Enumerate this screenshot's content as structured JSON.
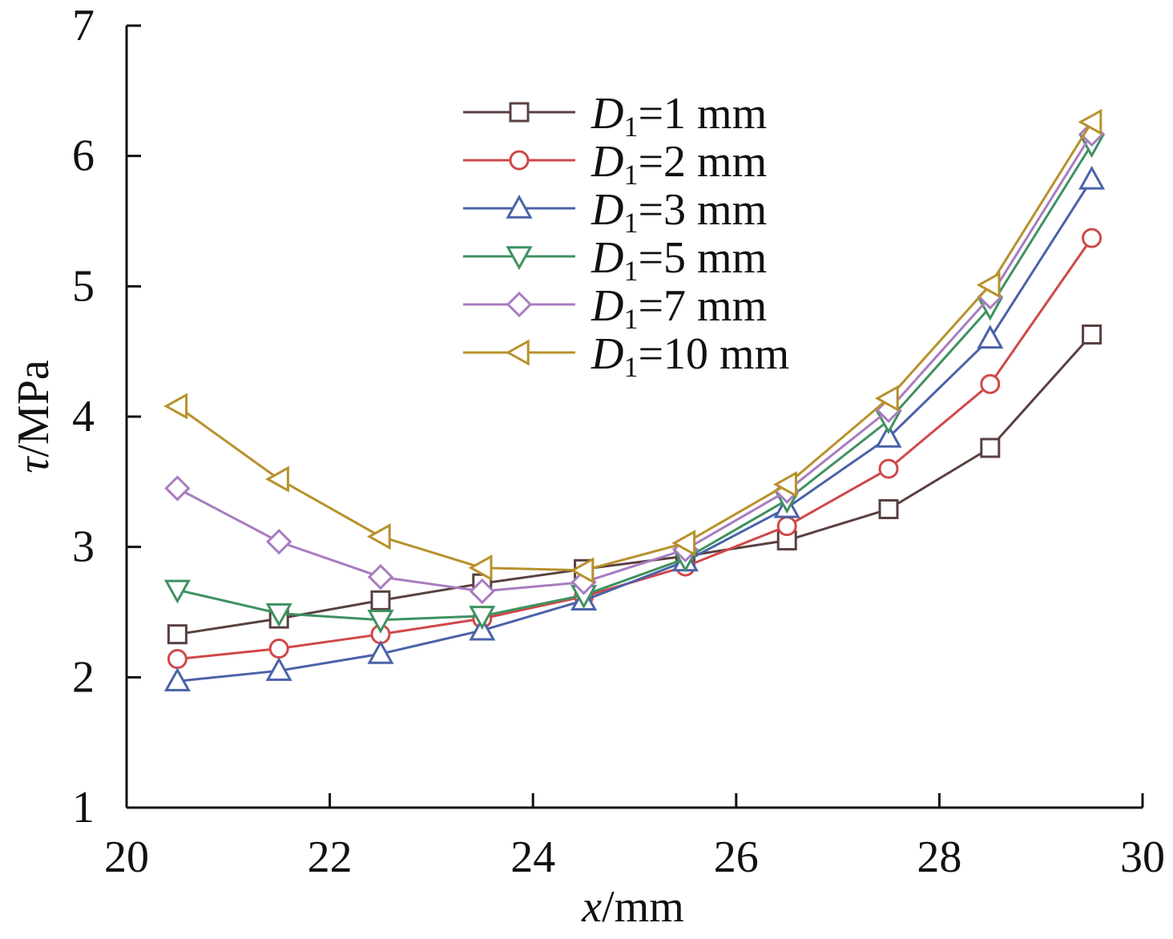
{
  "chart_data": {
    "type": "line",
    "xlabel": {
      "var": "x",
      "unit": "/mm"
    },
    "ylabel": {
      "var": "τ",
      "unit": "/MPa"
    },
    "xlim": [
      20,
      30
    ],
    "ylim": [
      1,
      7
    ],
    "xticks": [
      20,
      22,
      24,
      26,
      28,
      30
    ],
    "yticks": [
      1,
      2,
      3,
      4,
      5,
      6,
      7
    ],
    "grid": false,
    "legend_position": "top-center",
    "x": [
      20.5,
      21.5,
      22.5,
      23.5,
      24.5,
      25.5,
      26.5,
      27.5,
      28.5,
      29.5
    ],
    "series": [
      {
        "name": "D1=1 mm",
        "label_var": "D",
        "label_sub": "1",
        "label_rest": "=1 mm",
        "marker": "square",
        "color": "#5a4040",
        "values": [
          2.33,
          2.45,
          2.59,
          2.72,
          2.83,
          2.93,
          3.05,
          3.29,
          3.76,
          4.63
        ]
      },
      {
        "name": "D1=2 mm",
        "label_var": "D",
        "label_sub": "1",
        "label_rest": "=2 mm",
        "marker": "circle",
        "color": "#d04848",
        "values": [
          2.14,
          2.22,
          2.33,
          2.45,
          2.62,
          2.85,
          3.16,
          3.6,
          4.25,
          5.37
        ]
      },
      {
        "name": "D1=3 mm",
        "label_var": "D",
        "label_sub": "1",
        "label_rest": "=3 mm",
        "marker": "triangle-up",
        "color": "#4a62a8",
        "values": [
          1.97,
          2.05,
          2.18,
          2.36,
          2.59,
          2.89,
          3.3,
          3.84,
          4.6,
          5.82
        ]
      },
      {
        "name": "D1=5 mm",
        "label_var": "D",
        "label_sub": "1",
        "label_rest": "=5 mm",
        "marker": "triangle-down",
        "color": "#3f9160",
        "values": [
          2.67,
          2.49,
          2.44,
          2.47,
          2.63,
          2.91,
          3.36,
          3.97,
          4.84,
          6.09
        ]
      },
      {
        "name": "D1=7 mm",
        "label_var": "D",
        "label_sub": "1",
        "label_rest": "=7 mm",
        "marker": "diamond",
        "color": "#a87cc0",
        "values": [
          3.45,
          3.04,
          2.77,
          2.66,
          2.73,
          2.98,
          3.43,
          4.05,
          4.92,
          6.17
        ]
      },
      {
        "name": "D1=10 mm",
        "label_var": "D",
        "label_sub": "1",
        "label_rest": "=10 mm",
        "marker": "triangle-left",
        "color": "#b8912c",
        "values": [
          4.08,
          3.52,
          3.08,
          2.84,
          2.82,
          3.03,
          3.48,
          4.14,
          5.01,
          6.26
        ]
      }
    ]
  }
}
